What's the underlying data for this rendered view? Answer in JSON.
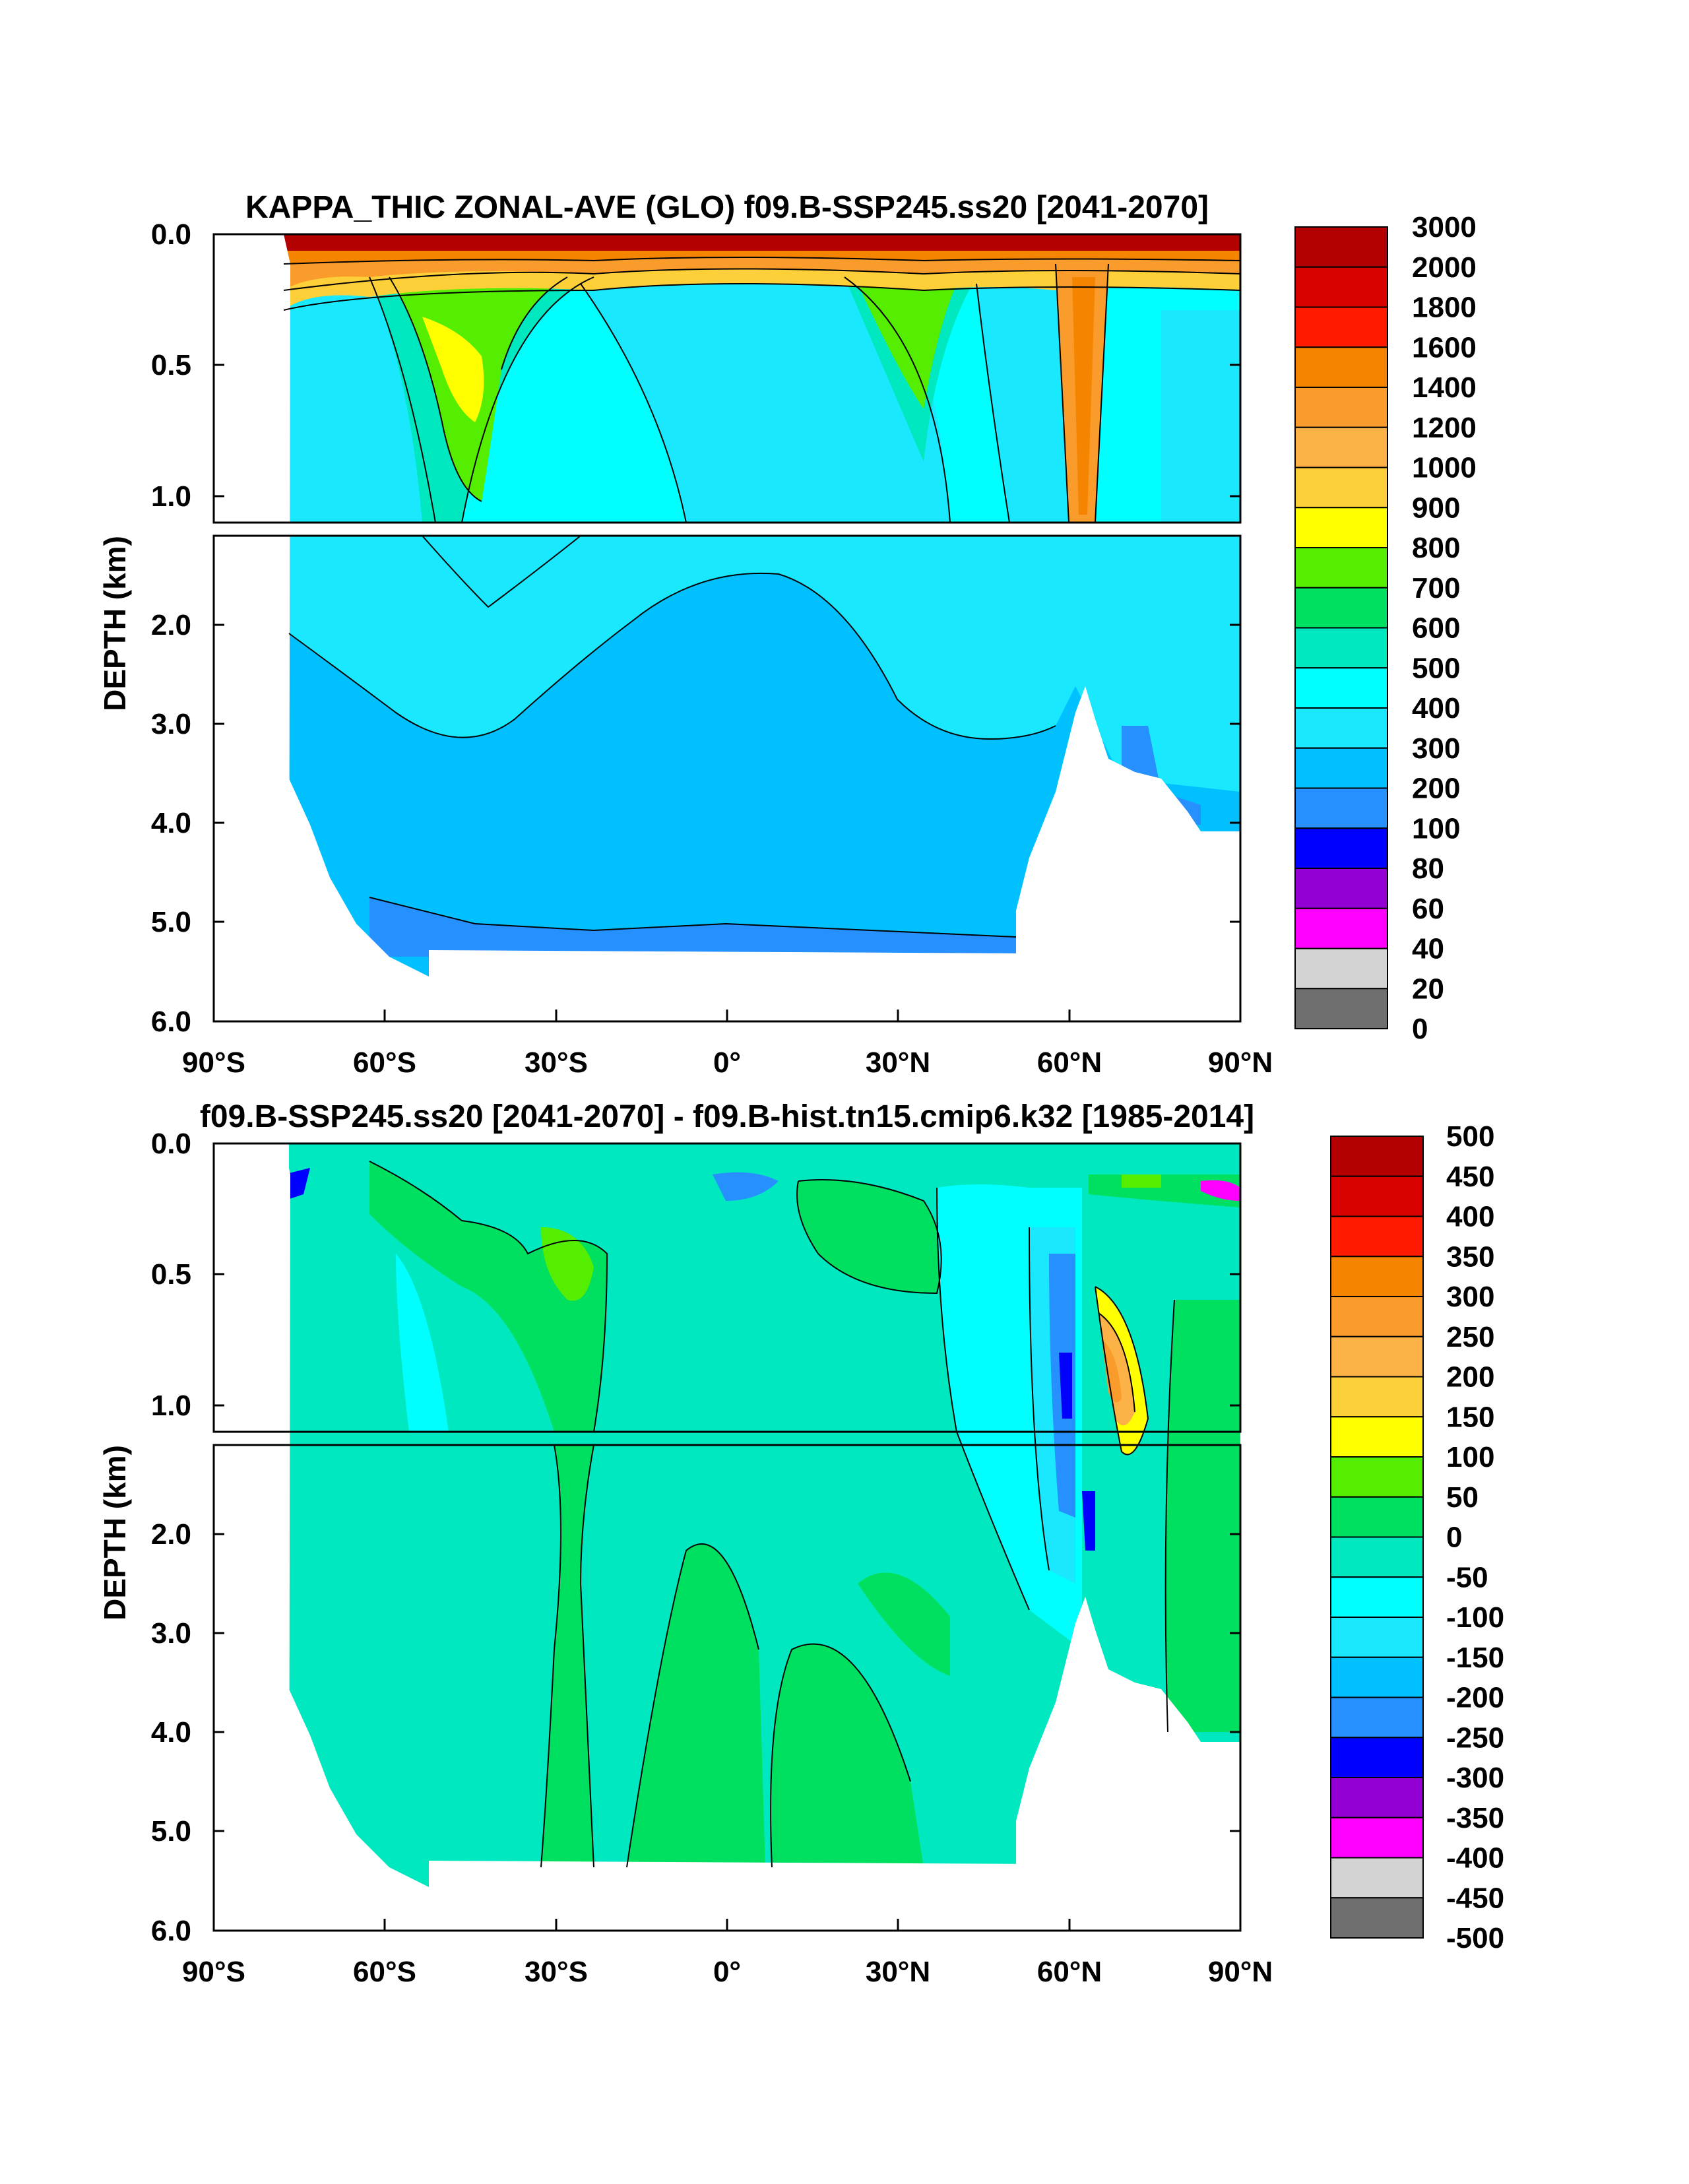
{
  "chart_data": [
    {
      "type": "heatmap",
      "title": "KAPPA_THIC ZONAL-AVE (GLO) f09.B-SSP245.ss20 [2041-2070]",
      "ylabel": "DEPTH (km)",
      "xlabel": "",
      "x_ticks": [
        "90°S",
        "60°S",
        "30°S",
        "0°",
        "30°N",
        "60°N",
        "90°N"
      ],
      "x_tick_values": [
        -90,
        -60,
        -30,
        0,
        30,
        60,
        90
      ],
      "xlim": [
        -90,
        90
      ],
      "y_ticks_upper": [
        "0.0",
        "0.5",
        "1.0"
      ],
      "y_ticks_lower": [
        "2.0",
        "3.0",
        "4.0",
        "5.0",
        "6.0"
      ],
      "ylim_upper_km": [
        0.0,
        1.1
      ],
      "ylim_lower_km": [
        1.1,
        6.0
      ],
      "colorbar_labels": [
        "3000",
        "2000",
        "1800",
        "1600",
        "1400",
        "1200",
        "1000",
        "900",
        "800",
        "700",
        "600",
        "500",
        "400",
        "300",
        "200",
        "100",
        "80",
        "60",
        "40",
        "20",
        "0"
      ],
      "colorbar_colors": [
        "#b30000",
        "#d90000",
        "#ff1a00",
        "#f58400",
        "#f99c2c",
        "#fcb246",
        "#fdd039",
        "#ffff00",
        "#55ee00",
        "#00e060",
        "#00e8c0",
        "#00ffff",
        "#1ae8ff",
        "#00c0ff",
        "#2690ff",
        "#0000ff",
        "#9400d3",
        "#ff00ff",
        "#d3d3d3",
        "#6e6e6e"
      ],
      "regions": [
        {
          "value": 3000,
          "lat": [
            -78,
            90
          ],
          "depth": [
            0.0,
            0.08
          ]
        },
        {
          "value": 1400,
          "lat": [
            -78,
            90
          ],
          "depth": [
            0.08,
            0.15
          ]
        },
        {
          "value": 700,
          "lat": [
            -52,
            -30
          ],
          "depth": [
            0.2,
            0.9
          ]
        },
        {
          "value": 800,
          "lat": [
            -48,
            -40
          ],
          "depth": [
            0.35,
            0.65
          ]
        },
        {
          "value": 500,
          "lat": [
            -60,
            40
          ],
          "depth": [
            0.2,
            1.1
          ]
        },
        {
          "value": 400,
          "lat": [
            -20,
            20
          ],
          "depth": [
            0.3,
            1.1
          ]
        },
        {
          "value": 1200,
          "lat": [
            60,
            68
          ],
          "depth": [
            0.1,
            1.5
          ]
        },
        {
          "value": 300,
          "lat": [
            -75,
            90
          ],
          "depth": [
            1.1,
            3.2
          ]
        },
        {
          "value": 200,
          "lat": [
            -75,
            52
          ],
          "depth": [
            2.5,
            5.2
          ]
        },
        {
          "value": 100,
          "lat": [
            -75,
            52
          ],
          "depth": [
            5.2,
            5.4
          ]
        }
      ]
    },
    {
      "type": "heatmap",
      "title": "f09.B-SSP245.ss20 [2041-2070] - f09.B-hist.tn15.cmip6.k32 [1985-2014]",
      "ylabel": "DEPTH (km)",
      "xlabel": "",
      "x_ticks": [
        "90°S",
        "60°S",
        "30°S",
        "0°",
        "30°N",
        "60°N",
        "90°N"
      ],
      "x_tick_values": [
        -90,
        -60,
        -30,
        0,
        30,
        60,
        90
      ],
      "xlim": [
        -90,
        90
      ],
      "y_ticks_upper": [
        "0.0",
        "0.5",
        "1.0"
      ],
      "y_ticks_lower": [
        "2.0",
        "3.0",
        "4.0",
        "5.0",
        "6.0"
      ],
      "ylim_upper_km": [
        0.0,
        1.1
      ],
      "ylim_lower_km": [
        1.1,
        6.0
      ],
      "colorbar_labels": [
        "500",
        "450",
        "400",
        "350",
        "300",
        "250",
        "200",
        "150",
        "100",
        "50",
        "0",
        "-50",
        "-100",
        "-150",
        "-200",
        "-250",
        "-300",
        "-350",
        "-400",
        "-450",
        "-500"
      ],
      "colorbar_colors": [
        "#b30000",
        "#d90000",
        "#ff1a00",
        "#f58400",
        "#f99c2c",
        "#fcb246",
        "#fdd039",
        "#ffff00",
        "#55ee00",
        "#00e060",
        "#00e8c0",
        "#00ffff",
        "#1ae8ff",
        "#00c0ff",
        "#2690ff",
        "#0000ff",
        "#9400d3",
        "#ff00ff",
        "#d3d3d3",
        "#6e6e6e"
      ],
      "regions": [
        {
          "value": 0,
          "lat": [
            -75,
            90
          ],
          "depth": [
            0.0,
            5.4
          ]
        },
        {
          "value": 50,
          "lat": [
            -35,
            -22
          ],
          "depth": [
            0.2,
            1.1
          ]
        },
        {
          "value": 100,
          "lat": [
            -32,
            -26
          ],
          "depth": [
            0.3,
            0.6
          ]
        },
        {
          "value": 50,
          "lat": [
            15,
            35
          ],
          "depth": [
            0.2,
            0.6
          ]
        },
        {
          "value": -200,
          "lat": [
            -5,
            5
          ],
          "depth": [
            0.1,
            0.3
          ]
        },
        {
          "value": -50,
          "lat": [
            38,
            60
          ],
          "depth": [
            0.2,
            2.8
          ]
        },
        {
          "value": -250,
          "lat": [
            58,
            63
          ],
          "depth": [
            0.6,
            2.3
          ]
        },
        {
          "value": 300,
          "lat": [
            64,
            70
          ],
          "depth": [
            0.6,
            1.3
          ]
        },
        {
          "value": 50,
          "lat": [
            -30,
            -26
          ],
          "depth": [
            1.3,
            5.4
          ]
        },
        {
          "value": 50,
          "lat": [
            -15,
            30
          ],
          "depth": [
            2.5,
            5.4
          ]
        },
        {
          "value": 50,
          "lat": [
            78,
            90
          ],
          "depth": [
            0.6,
            4.1
          ]
        },
        {
          "value": -400,
          "lat": [
            82,
            90
          ],
          "depth": [
            0.1,
            0.25
          ]
        }
      ]
    }
  ]
}
